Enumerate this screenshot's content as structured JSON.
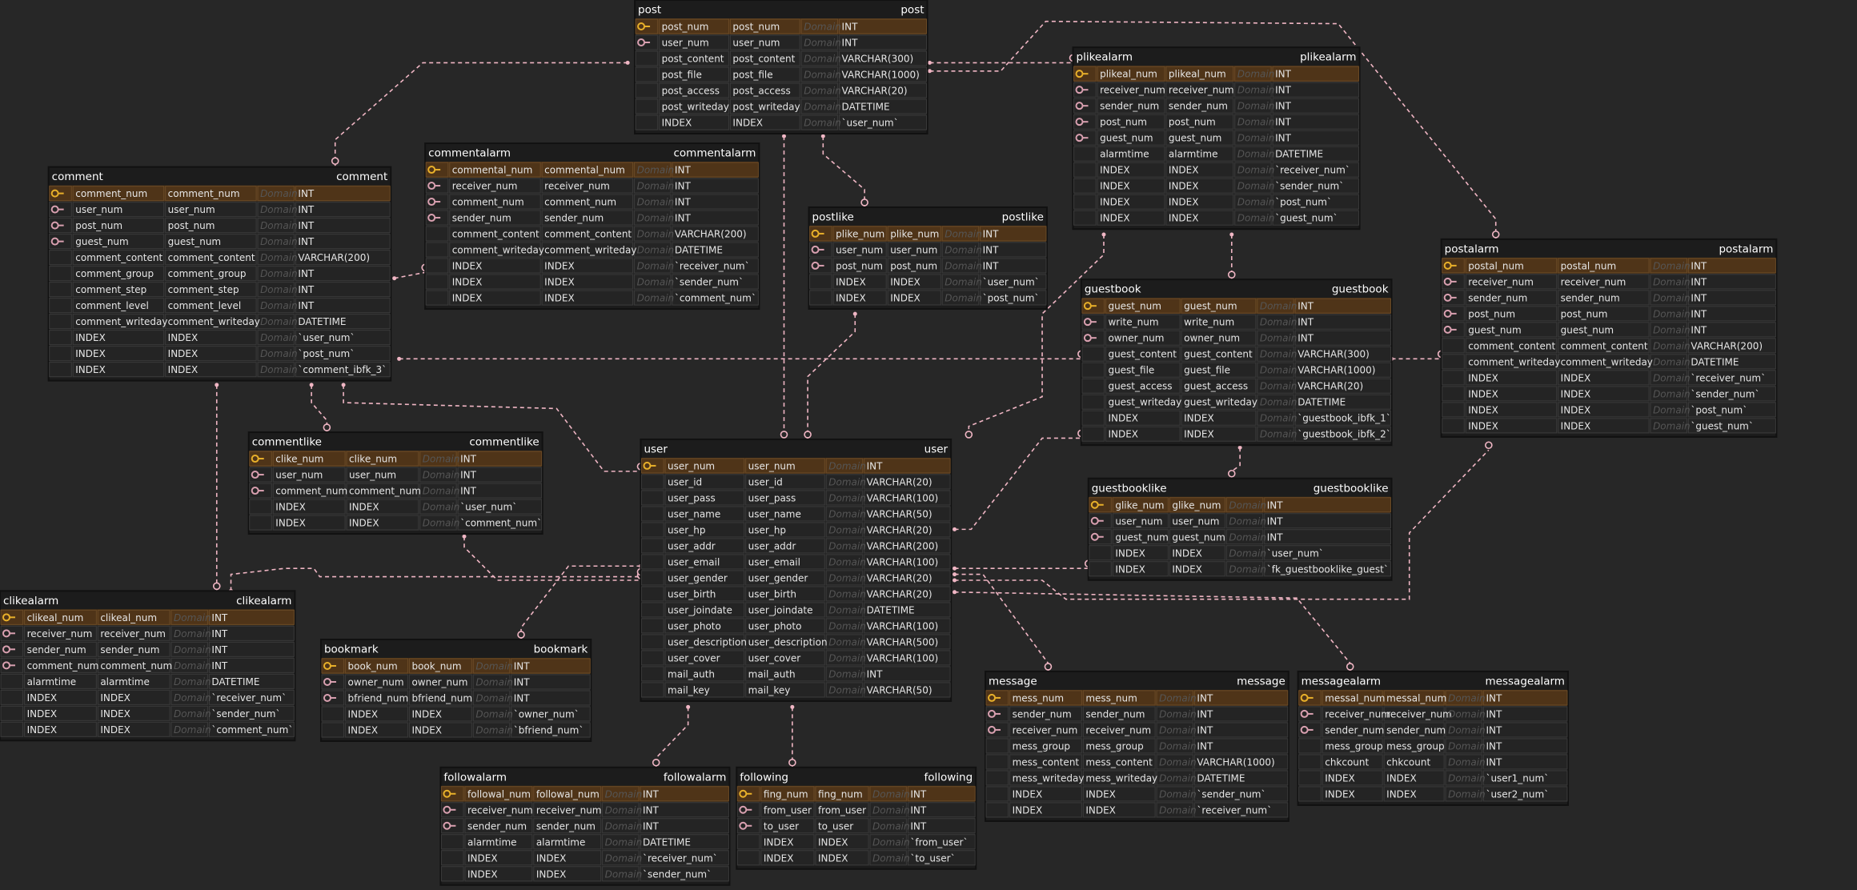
{
  "tables": [
    {
      "name": "post",
      "rows": [
        [
          "post_num",
          "post_num",
          "Domain",
          "INT"
        ],
        [
          "user_num",
          "user_num",
          "Domain",
          "INT"
        ],
        [
          "post_content",
          "post_content",
          "Domain",
          "VARCHAR(300)"
        ],
        [
          "post_file",
          "post_file",
          "Domain",
          "VARCHAR(1000)"
        ],
        [
          "post_access",
          "post_access",
          "Domain",
          "VARCHAR(20)"
        ],
        [
          "post_writeday",
          "post_writeday",
          "Domain",
          "DATETIME"
        ],
        [
          "INDEX",
          "INDEX",
          "Domain",
          "`user_num`"
        ]
      ]
    },
    {
      "name": "plikealarm",
      "rows": [
        [
          "plikeal_num",
          "plikeal_num",
          "Domain",
          "INT"
        ],
        [
          "receiver_num",
          "receiver_num",
          "Domain",
          "INT"
        ],
        [
          "sender_num",
          "sender_num",
          "Domain",
          "INT"
        ],
        [
          "post_num",
          "post_num",
          "Domain",
          "INT"
        ],
        [
          "guest_num",
          "guest_num",
          "Domain",
          "INT"
        ],
        [
          "alarmtime",
          "alarmtime",
          "Domain",
          "DATETIME"
        ],
        [
          "INDEX",
          "INDEX",
          "Domain",
          "`receiver_num`"
        ],
        [
          "INDEX",
          "INDEX",
          "Domain",
          "`sender_num`"
        ],
        [
          "INDEX",
          "INDEX",
          "Domain",
          "`post_num`"
        ],
        [
          "INDEX",
          "INDEX",
          "Domain",
          "`guest_num`"
        ]
      ]
    },
    {
      "name": "comment",
      "rows": [
        [
          "comment_num",
          "comment_num",
          "Domain",
          "INT"
        ],
        [
          "user_num",
          "user_num",
          "Domain",
          "INT"
        ],
        [
          "post_num",
          "post_num",
          "Domain",
          "INT"
        ],
        [
          "guest_num",
          "guest_num",
          "Domain",
          "INT"
        ],
        [
          "comment_content",
          "comment_content",
          "Domain",
          "VARCHAR(200)"
        ],
        [
          "comment_group",
          "comment_group",
          "Domain",
          "INT"
        ],
        [
          "comment_step",
          "comment_step",
          "Domain",
          "INT"
        ],
        [
          "comment_level",
          "comment_level",
          "Domain",
          "INT"
        ],
        [
          "comment_writeday",
          "comment_writeday",
          "Domain",
          "DATETIME"
        ],
        [
          "INDEX",
          "INDEX",
          "Domain",
          "`user_num`"
        ],
        [
          "INDEX",
          "INDEX",
          "Domain",
          "`post_num`"
        ],
        [
          "INDEX",
          "INDEX",
          "Domain",
          "`comment_ibfk_3`"
        ]
      ]
    },
    {
      "name": "commentalarm",
      "rows": [
        [
          "commental_num",
          "commental_num",
          "Domain",
          "INT"
        ],
        [
          "receiver_num",
          "receiver_num",
          "Domain",
          "INT"
        ],
        [
          "comment_num",
          "comment_num",
          "Domain",
          "INT"
        ],
        [
          "sender_num",
          "sender_num",
          "Domain",
          "INT"
        ],
        [
          "comment_content",
          "comment_content",
          "Domain",
          "VARCHAR(200)"
        ],
        [
          "comment_writeday",
          "comment_writeday",
          "Domain",
          "DATETIME"
        ],
        [
          "INDEX",
          "INDEX",
          "Domain",
          "`receiver_num`"
        ],
        [
          "INDEX",
          "INDEX",
          "Domain",
          "`sender_num`"
        ],
        [
          "INDEX",
          "INDEX",
          "Domain",
          "`comment_num`"
        ]
      ]
    },
    {
      "name": "postlike",
      "rows": [
        [
          "plike_num",
          "plike_num",
          "Domain",
          "INT"
        ],
        [
          "user_num",
          "user_num",
          "Domain",
          "INT"
        ],
        [
          "post_num",
          "post_num",
          "Domain",
          "INT"
        ],
        [
          "INDEX",
          "INDEX",
          "Domain",
          "`user_num`"
        ],
        [
          "INDEX",
          "INDEX",
          "Domain",
          "`post_num`"
        ]
      ]
    },
    {
      "name": "postalarm",
      "rows": [
        [
          "postal_num",
          "postal_num",
          "Domain",
          "INT"
        ],
        [
          "receiver_num",
          "receiver_num",
          "Domain",
          "INT"
        ],
        [
          "sender_num",
          "sender_num",
          "Domain",
          "INT"
        ],
        [
          "post_num",
          "post_num",
          "Domain",
          "INT"
        ],
        [
          "guest_num",
          "guest_num",
          "Domain",
          "INT"
        ],
        [
          "comment_content",
          "comment_content",
          "Domain",
          "VARCHAR(200)"
        ],
        [
          "comment_writeday",
          "comment_writeday",
          "Domain",
          "DATETIME"
        ],
        [
          "INDEX",
          "INDEX",
          "Domain",
          "`receiver_num`"
        ],
        [
          "INDEX",
          "INDEX",
          "Domain",
          "`sender_num`"
        ],
        [
          "INDEX",
          "INDEX",
          "Domain",
          "`post_num`"
        ],
        [
          "INDEX",
          "INDEX",
          "Domain",
          "`guest_num`"
        ]
      ]
    },
    {
      "name": "guestbook",
      "rows": [
        [
          "guest_num",
          "guest_num",
          "Domain",
          "INT"
        ],
        [
          "write_num",
          "write_num",
          "Domain",
          "INT"
        ],
        [
          "owner_num",
          "owner_num",
          "Domain",
          "INT"
        ],
        [
          "guest_content",
          "guest_content",
          "Domain",
          "VARCHAR(300)"
        ],
        [
          "guest_file",
          "guest_file",
          "Domain",
          "VARCHAR(1000)"
        ],
        [
          "guest_access",
          "guest_access",
          "Domain",
          "VARCHAR(20)"
        ],
        [
          "guest_writeday",
          "guest_writeday",
          "Domain",
          "DATETIME"
        ],
        [
          "INDEX",
          "INDEX",
          "Domain",
          "`guestbook_ibfk_1`"
        ],
        [
          "INDEX",
          "INDEX",
          "Domain",
          "`guestbook_ibfk_2`"
        ]
      ]
    },
    {
      "name": "commentlike",
      "rows": [
        [
          "clike_num",
          "clike_num",
          "Domain",
          "INT"
        ],
        [
          "user_num",
          "user_num",
          "Domain",
          "INT"
        ],
        [
          "comment_num",
          "comment_num",
          "Domain",
          "INT"
        ],
        [
          "INDEX",
          "INDEX",
          "Domain",
          "`user_num`"
        ],
        [
          "INDEX",
          "INDEX",
          "Domain",
          "`comment_num`"
        ]
      ]
    },
    {
      "name": "user",
      "rows": [
        [
          "user_num",
          "user_num",
          "Domain",
          "INT"
        ],
        [
          "user_id",
          "user_id",
          "Domain",
          "VARCHAR(20)"
        ],
        [
          "user_pass",
          "user_pass",
          "Domain",
          "VARCHAR(100)"
        ],
        [
          "user_name",
          "user_name",
          "Domain",
          "VARCHAR(50)"
        ],
        [
          "user_hp",
          "user_hp",
          "Domain",
          "VARCHAR(20)"
        ],
        [
          "user_addr",
          "user_addr",
          "Domain",
          "VARCHAR(200)"
        ],
        [
          "user_email",
          "user_email",
          "Domain",
          "VARCHAR(100)"
        ],
        [
          "user_gender",
          "user_gender",
          "Domain",
          "VARCHAR(20)"
        ],
        [
          "user_birth",
          "user_birth",
          "Domain",
          "VARCHAR(20)"
        ],
        [
          "user_joindate",
          "user_joindate",
          "Domain",
          "DATETIME"
        ],
        [
          "user_photo",
          "user_photo",
          "Domain",
          "VARCHAR(100)"
        ],
        [
          "user_description",
          "user_description",
          "Domain",
          "VARCHAR(500)"
        ],
        [
          "user_cover",
          "user_cover",
          "Domain",
          "VARCHAR(100)"
        ],
        [
          "mail_auth",
          "mail_auth",
          "Domain",
          "INT"
        ],
        [
          "mail_key",
          "mail_key",
          "Domain",
          "VARCHAR(50)"
        ]
      ]
    },
    {
      "name": "guestbooklike",
      "rows": [
        [
          "glike_num",
          "glike_num",
          "Domain",
          "INT"
        ],
        [
          "user_num",
          "user_num",
          "Domain",
          "INT"
        ],
        [
          "guest_num",
          "guest_num",
          "Domain",
          "INT"
        ],
        [
          "INDEX",
          "INDEX",
          "Domain",
          "`user_num`"
        ],
        [
          "INDEX",
          "INDEX",
          "Domain",
          "`fk_guestbooklike_guest`"
        ]
      ]
    },
    {
      "name": "clikealarm",
      "rows": [
        [
          "clikeal_num",
          "clikeal_num",
          "Domain",
          "INT"
        ],
        [
          "receiver_num",
          "receiver_num",
          "Domain",
          "INT"
        ],
        [
          "sender_num",
          "sender_num",
          "Domain",
          "INT"
        ],
        [
          "comment_num",
          "comment_num",
          "Domain",
          "INT"
        ],
        [
          "alarmtime",
          "alarmtime",
          "Domain",
          "DATETIME"
        ],
        [
          "INDEX",
          "INDEX",
          "Domain",
          "`receiver_num`"
        ],
        [
          "INDEX",
          "INDEX",
          "Domain",
          "`sender_num`"
        ],
        [
          "INDEX",
          "INDEX",
          "Domain",
          "`comment_num`"
        ]
      ]
    },
    {
      "name": "bookmark",
      "rows": [
        [
          "book_num",
          "book_num",
          "Domain",
          "INT"
        ],
        [
          "owner_num",
          "owner_num",
          "Domain",
          "INT"
        ],
        [
          "bfriend_num",
          "bfriend_num",
          "Domain",
          "INT"
        ],
        [
          "INDEX",
          "INDEX",
          "Domain",
          "`owner_num`"
        ],
        [
          "INDEX",
          "INDEX",
          "Domain",
          "`bfriend_num`"
        ]
      ]
    },
    {
      "name": "message",
      "rows": [
        [
          "mess_num",
          "mess_num",
          "Domain",
          "INT"
        ],
        [
          "sender_num",
          "sender_num",
          "Domain",
          "INT"
        ],
        [
          "receiver_num",
          "receiver_num",
          "Domain",
          "INT"
        ],
        [
          "mess_group",
          "mess_group",
          "Domain",
          "INT"
        ],
        [
          "mess_content",
          "mess_content",
          "Domain",
          "VARCHAR(1000)"
        ],
        [
          "mess_writeday",
          "mess_writeday",
          "Domain",
          "DATETIME"
        ],
        [
          "INDEX",
          "INDEX",
          "Domain",
          "`sender_num`"
        ],
        [
          "INDEX",
          "INDEX",
          "Domain",
          "`receiver_num`"
        ]
      ]
    },
    {
      "name": "messagealarm",
      "rows": [
        [
          "messal_num",
          "messal_num",
          "Domain",
          "INT"
        ],
        [
          "receiver_num",
          "receiver_num",
          "Domain",
          "INT"
        ],
        [
          "sender_num",
          "sender_num",
          "Domain",
          "INT"
        ],
        [
          "mess_group",
          "mess_group",
          "Domain",
          "INT"
        ],
        [
          "chkcount",
          "chkcount",
          "Domain",
          "INT"
        ],
        [
          "INDEX",
          "INDEX",
          "Domain",
          "`user1_num`"
        ],
        [
          "INDEX",
          "INDEX",
          "Domain",
          "`user2_num`"
        ]
      ]
    },
    {
      "name": "followalarm",
      "rows": [
        [
          "followal_num",
          "followal_num",
          "Domain",
          "INT"
        ],
        [
          "receiver_num",
          "receiver_num",
          "Domain",
          "INT"
        ],
        [
          "sender_num",
          "sender_num",
          "Domain",
          "INT"
        ],
        [
          "alarmtime",
          "alarmtime",
          "Domain",
          "DATETIME"
        ],
        [
          "INDEX",
          "INDEX",
          "Domain",
          "`receiver_num`"
        ],
        [
          "INDEX",
          "INDEX",
          "Domain",
          "`sender_num`"
        ]
      ]
    },
    {
      "name": "following",
      "rows": [
        [
          "fing_num",
          "fing_num",
          "Domain",
          "INT"
        ],
        [
          "from_user",
          "from_user",
          "Domain",
          "INT"
        ],
        [
          "to_user",
          "to_user",
          "Domain",
          "INT"
        ],
        [
          "INDEX",
          "INDEX",
          "Domain",
          "`from_user`"
        ],
        [
          "INDEX",
          "INDEX",
          "Domain",
          "`to_user`"
        ]
      ]
    }
  ]
}
